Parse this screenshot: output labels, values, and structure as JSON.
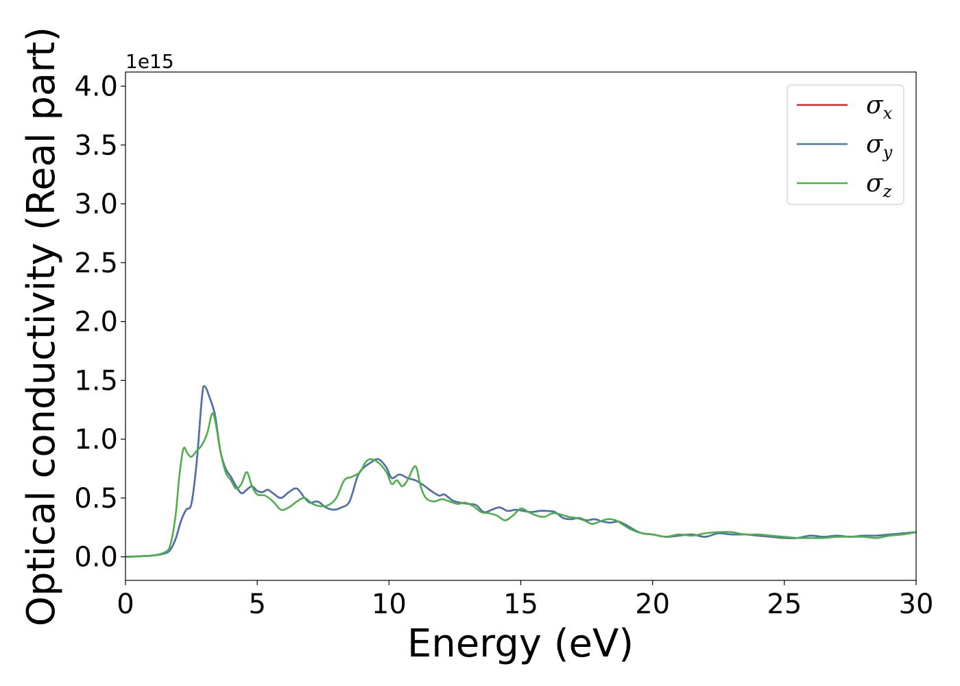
{
  "chart_data": {
    "type": "line",
    "xlabel": "Energy (eV)",
    "ylabel": "Optical conductivity (Real part)",
    "y_offset_label": "1e15",
    "xlim": [
      0,
      30
    ],
    "ylim": [
      -0.2,
      4.12
    ],
    "x_ticks": [
      0,
      5,
      10,
      15,
      20,
      25,
      30
    ],
    "x_tick_labels": [
      "0",
      "5",
      "10",
      "15",
      "20",
      "25",
      "30"
    ],
    "y_ticks": [
      0.0,
      0.5,
      1.0,
      1.5,
      2.0,
      2.5,
      3.0,
      3.5,
      4.0
    ],
    "y_tick_labels": [
      "0.0",
      "0.5",
      "1.0",
      "1.5",
      "2.0",
      "2.5",
      "3.0",
      "3.5",
      "4.0"
    ],
    "grid": false,
    "legend_position": "top-right",
    "series": [
      {
        "name": "σx",
        "symbol": "σ",
        "subscript": "x",
        "color": "#d62728",
        "x": [
          0,
          1,
          1.5,
          1.7,
          1.9,
          2.1,
          2.3,
          2.5,
          2.7,
          2.9,
          3.0,
          3.2,
          3.4,
          3.6,
          3.8,
          4.0,
          4.2,
          4.4,
          4.6,
          4.8,
          5.0,
          5.2,
          5.4,
          5.6,
          5.9,
          6.2,
          6.5,
          6.8,
          7.0,
          7.3,
          7.6,
          7.9,
          8.2,
          8.5,
          8.8,
          9.0,
          9.3,
          9.6,
          9.9,
          10.1,
          10.4,
          10.7,
          11.0,
          11.3,
          11.6,
          11.9,
          12.1,
          12.4,
          12.7,
          13.0,
          13.3,
          13.6,
          13.9,
          14.2,
          14.5,
          14.8,
          15.1,
          15.4,
          15.7,
          16.0,
          16.3,
          16.6,
          16.9,
          17.2,
          17.5,
          17.8,
          18.1,
          18.4,
          18.7,
          19.0,
          19.3,
          19.6,
          20.0,
          20.5,
          21.0,
          21.5,
          22.0,
          22.5,
          23.0,
          23.5,
          24.0,
          24.5,
          25.0,
          25.5,
          26.0,
          26.5,
          27.0,
          27.5,
          28.0,
          28.5,
          29.0,
          29.5,
          30.0
        ],
        "y": [
          0.0,
          0.01,
          0.03,
          0.06,
          0.15,
          0.3,
          0.4,
          0.45,
          0.8,
          1.35,
          1.45,
          1.35,
          1.2,
          0.9,
          0.75,
          0.68,
          0.6,
          0.54,
          0.57,
          0.6,
          0.56,
          0.55,
          0.57,
          0.54,
          0.5,
          0.55,
          0.58,
          0.5,
          0.46,
          0.47,
          0.42,
          0.4,
          0.42,
          0.47,
          0.68,
          0.75,
          0.8,
          0.83,
          0.76,
          0.67,
          0.7,
          0.67,
          0.65,
          0.61,
          0.56,
          0.52,
          0.53,
          0.48,
          0.46,
          0.45,
          0.44,
          0.38,
          0.4,
          0.42,
          0.39,
          0.4,
          0.39,
          0.38,
          0.39,
          0.39,
          0.38,
          0.33,
          0.32,
          0.33,
          0.31,
          0.32,
          0.3,
          0.29,
          0.3,
          0.27,
          0.23,
          0.2,
          0.19,
          0.17,
          0.18,
          0.19,
          0.17,
          0.2,
          0.19,
          0.19,
          0.18,
          0.17,
          0.16,
          0.16,
          0.18,
          0.17,
          0.18,
          0.17,
          0.18,
          0.18,
          0.19,
          0.2,
          0.21
        ]
      },
      {
        "name": "σy",
        "symbol": "σ",
        "subscript": "y",
        "color": "#4a74b0",
        "x": [
          0,
          1,
          1.5,
          1.7,
          1.9,
          2.1,
          2.3,
          2.5,
          2.7,
          2.9,
          3.0,
          3.2,
          3.4,
          3.6,
          3.8,
          4.0,
          4.2,
          4.4,
          4.6,
          4.8,
          5.0,
          5.2,
          5.4,
          5.6,
          5.9,
          6.2,
          6.5,
          6.8,
          7.0,
          7.3,
          7.6,
          7.9,
          8.2,
          8.5,
          8.8,
          9.0,
          9.3,
          9.6,
          9.9,
          10.1,
          10.4,
          10.7,
          11.0,
          11.3,
          11.6,
          11.9,
          12.1,
          12.4,
          12.7,
          13.0,
          13.3,
          13.6,
          13.9,
          14.2,
          14.5,
          14.8,
          15.1,
          15.4,
          15.7,
          16.0,
          16.3,
          16.6,
          16.9,
          17.2,
          17.5,
          17.8,
          18.1,
          18.4,
          18.7,
          19.0,
          19.3,
          19.6,
          20.0,
          20.5,
          21.0,
          21.5,
          22.0,
          22.5,
          23.0,
          23.5,
          24.0,
          24.5,
          25.0,
          25.5,
          26.0,
          26.5,
          27.0,
          27.5,
          28.0,
          28.5,
          29.0,
          29.5,
          30.0
        ],
        "y": [
          0.0,
          0.01,
          0.03,
          0.06,
          0.15,
          0.3,
          0.4,
          0.45,
          0.8,
          1.35,
          1.45,
          1.35,
          1.2,
          0.9,
          0.75,
          0.68,
          0.6,
          0.54,
          0.57,
          0.6,
          0.56,
          0.55,
          0.57,
          0.54,
          0.5,
          0.55,
          0.58,
          0.5,
          0.46,
          0.47,
          0.42,
          0.4,
          0.42,
          0.47,
          0.68,
          0.75,
          0.8,
          0.83,
          0.76,
          0.67,
          0.7,
          0.67,
          0.65,
          0.61,
          0.56,
          0.52,
          0.53,
          0.48,
          0.46,
          0.45,
          0.44,
          0.38,
          0.4,
          0.42,
          0.39,
          0.4,
          0.39,
          0.38,
          0.39,
          0.39,
          0.38,
          0.33,
          0.32,
          0.33,
          0.31,
          0.32,
          0.3,
          0.29,
          0.3,
          0.27,
          0.23,
          0.2,
          0.19,
          0.17,
          0.18,
          0.19,
          0.17,
          0.2,
          0.19,
          0.19,
          0.18,
          0.17,
          0.16,
          0.16,
          0.18,
          0.17,
          0.18,
          0.17,
          0.18,
          0.18,
          0.19,
          0.2,
          0.21
        ]
      },
      {
        "name": "σz",
        "symbol": "σ",
        "subscript": "z",
        "color": "#4daf4a",
        "x": [
          0,
          1,
          1.5,
          1.7,
          1.9,
          2.05,
          2.2,
          2.35,
          2.5,
          2.7,
          2.9,
          3.1,
          3.3,
          3.45,
          3.6,
          3.8,
          4.0,
          4.2,
          4.4,
          4.6,
          4.8,
          5.0,
          5.3,
          5.6,
          5.9,
          6.2,
          6.5,
          6.8,
          7.1,
          7.4,
          7.7,
          8.0,
          8.3,
          8.6,
          8.9,
          9.1,
          9.3,
          9.6,
          9.9,
          10.1,
          10.3,
          10.5,
          10.7,
          11.0,
          11.2,
          11.4,
          11.7,
          12.0,
          12.3,
          12.6,
          12.9,
          13.2,
          13.5,
          13.8,
          14.1,
          14.4,
          14.7,
          15.0,
          15.3,
          15.6,
          15.9,
          16.2,
          16.5,
          16.8,
          17.1,
          17.4,
          17.7,
          18.0,
          18.3,
          18.6,
          18.9,
          19.2,
          19.6,
          20.0,
          20.5,
          21.0,
          21.5,
          22.0,
          22.5,
          23.0,
          23.5,
          24.0,
          24.5,
          25.0,
          25.5,
          26.0,
          26.5,
          27.0,
          27.5,
          28.0,
          28.5,
          29.0,
          29.5,
          30.0
        ],
        "y": [
          0.0,
          0.01,
          0.04,
          0.1,
          0.35,
          0.7,
          0.92,
          0.88,
          0.85,
          0.9,
          0.95,
          1.05,
          1.22,
          1.1,
          0.9,
          0.72,
          0.65,
          0.58,
          0.62,
          0.72,
          0.6,
          0.53,
          0.52,
          0.47,
          0.4,
          0.42,
          0.47,
          0.5,
          0.45,
          0.43,
          0.44,
          0.5,
          0.65,
          0.68,
          0.72,
          0.8,
          0.83,
          0.8,
          0.72,
          0.62,
          0.65,
          0.6,
          0.65,
          0.77,
          0.6,
          0.5,
          0.47,
          0.49,
          0.47,
          0.45,
          0.46,
          0.43,
          0.38,
          0.37,
          0.35,
          0.31,
          0.35,
          0.41,
          0.38,
          0.35,
          0.34,
          0.37,
          0.36,
          0.34,
          0.33,
          0.31,
          0.28,
          0.3,
          0.32,
          0.31,
          0.27,
          0.23,
          0.2,
          0.19,
          0.17,
          0.19,
          0.18,
          0.2,
          0.21,
          0.21,
          0.19,
          0.19,
          0.18,
          0.17,
          0.16,
          0.16,
          0.16,
          0.17,
          0.17,
          0.17,
          0.16,
          0.18,
          0.19,
          0.21
        ]
      }
    ]
  }
}
